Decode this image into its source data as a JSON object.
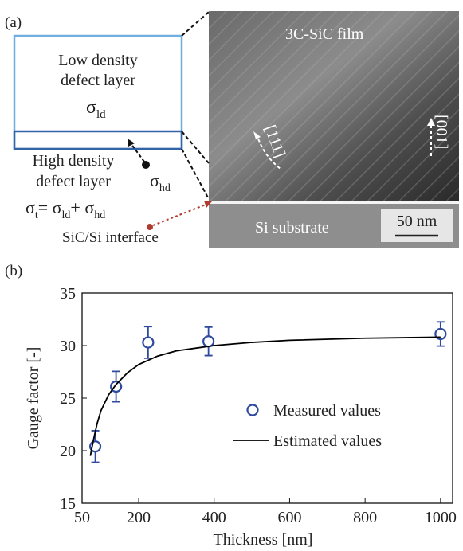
{
  "panel_a": {
    "label": "(a)",
    "low_layer": [
      "Low density",
      "defect layer"
    ],
    "sigma_ld": {
      "symbol": "σ",
      "sub": "ld"
    },
    "high_layer": [
      "High density",
      "defect layer"
    ],
    "sigma_hd": {
      "symbol": "σ",
      "sub": "hd"
    },
    "equation": {
      "lhs": {
        "symbol": "σ",
        "sub": "t"
      },
      "op1": "= σ",
      "sub1": "ld",
      "op2": "+ σ",
      "sub2": "hd"
    },
    "interface": "SiC/Si interface",
    "film": "3C-SiC film",
    "dir1": "[111]",
    "dir2": "[001]",
    "substrate": "Si substrate",
    "scale_bar": "50 nm"
  },
  "chart_data": {
    "type": "scatter",
    "panel_label": "(b)",
    "x_label": "Thickness [nm]",
    "y_label": "Gauge factor [-]",
    "xlim": [
      50,
      1032
    ],
    "ylim": [
      15,
      35
    ],
    "xticks": [
      50,
      200,
      400,
      600,
      800,
      1000
    ],
    "yticks": [
      15,
      20,
      25,
      30,
      35
    ],
    "legend": "center right",
    "series": [
      {
        "name": "Measured values",
        "type": "scatter",
        "color": "#2e4a9e",
        "x": [
          85,
          140,
          225,
          385,
          1000
        ],
        "values": [
          20.4,
          26.1,
          30.3,
          30.4,
          31.1
        ],
        "errors": [
          1.5,
          1.45,
          1.5,
          1.35,
          1.15
        ]
      },
      {
        "name": "Estimated values",
        "type": "line",
        "color": "#000000",
        "x": [
          72,
          80,
          90,
          100,
          120,
          140,
          170,
          200,
          250,
          300,
          400,
          500,
          600,
          800,
          1000
        ],
        "values": [
          19.5,
          21.0,
          22.6,
          23.8,
          25.3,
          26.3,
          27.4,
          28.2,
          29.0,
          29.5,
          30.0,
          30.3,
          30.5,
          30.7,
          30.8
        ]
      }
    ]
  }
}
